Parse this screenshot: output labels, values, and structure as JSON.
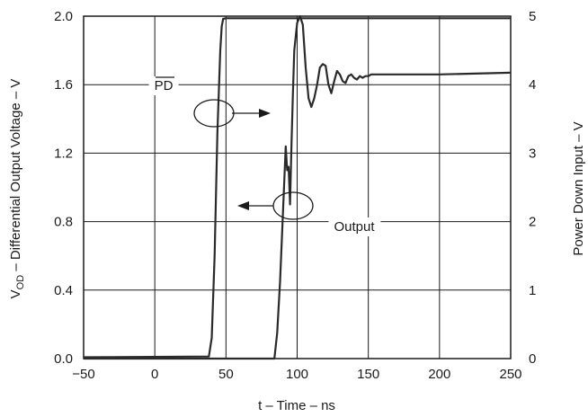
{
  "chart_data": {
    "type": "line",
    "title": "",
    "xlabel": "t – Time – ns",
    "ylabel_left": {
      "pre": "V",
      "sub": "OD",
      "post": " – Differential Output Voltage – V"
    },
    "ylabel_right": "Power Down Input – V",
    "xlim": [
      -50,
      250
    ],
    "ylim_left": [
      0,
      2.0
    ],
    "ylim_right": [
      0,
      5
    ],
    "x_ticks": [
      -50,
      0,
      50,
      100,
      150,
      200,
      250
    ],
    "y_left_ticks": [
      "0.0",
      "0.4",
      "0.8",
      "1.2",
      "1.6",
      "2.0"
    ],
    "y_right_ticks": [
      "0",
      "1",
      "2",
      "3",
      "4",
      "5"
    ],
    "grid": true,
    "series": [
      {
        "axis": "right",
        "x": [
          -50,
          38,
          40,
          42,
          44,
          46,
          47,
          48,
          50,
          60,
          80,
          100,
          150,
          200,
          250
        ],
        "y": [
          0.02,
          0.03,
          0.3,
          1.5,
          3.3,
          4.5,
          4.85,
          4.96,
          4.97,
          4.97,
          4.97,
          4.97,
          4.97,
          4.97,
          4.97
        ]
      },
      {
        "axis": "left",
        "x": [
          -50,
          0,
          84,
          86,
          88,
          90,
          92,
          93,
          94,
          95,
          96,
          97,
          98,
          100,
          102,
          104,
          106,
          108,
          110,
          112,
          114,
          116,
          118,
          120,
          122,
          124,
          126,
          128,
          130,
          132,
          134,
          136,
          138,
          140,
          142,
          144,
          146,
          148,
          150,
          152,
          155,
          160,
          200,
          250
        ],
        "y": [
          0.0,
          0.0,
          0.0,
          0.15,
          0.45,
          0.85,
          1.24,
          1.1,
          1.12,
          0.9,
          1.25,
          1.55,
          1.8,
          1.96,
          2.0,
          1.95,
          1.7,
          1.52,
          1.47,
          1.52,
          1.6,
          1.7,
          1.72,
          1.71,
          1.6,
          1.55,
          1.62,
          1.68,
          1.66,
          1.62,
          1.61,
          1.65,
          1.66,
          1.64,
          1.63,
          1.65,
          1.64,
          1.65,
          1.65,
          1.66,
          1.66,
          1.66,
          1.66,
          1.67
        ]
      }
    ],
    "annotations": [
      {
        "text": "PD",
        "overline": true,
        "x": 41,
        "y": 1.58
      },
      {
        "text": "Output",
        "x": 127,
        "y": 0.78
      }
    ]
  }
}
